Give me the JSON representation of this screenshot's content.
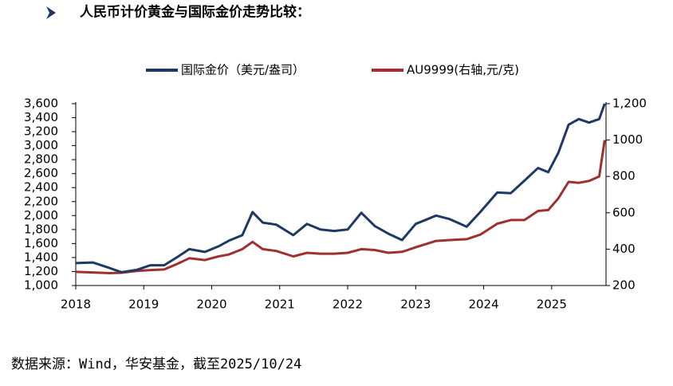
{
  "heading": "人民币计价黄金与国际金价走势比较：",
  "chart_data": {
    "type": "line",
    "x": [
      2018.0,
      2018.25,
      2018.5,
      2018.67,
      2018.9,
      2019.1,
      2019.3,
      2019.5,
      2019.67,
      2019.9,
      2020.1,
      2020.25,
      2020.45,
      2020.6,
      2020.75,
      2020.95,
      2021.2,
      2021.4,
      2021.6,
      2021.8,
      2022.0,
      2022.2,
      2022.4,
      2022.6,
      2022.8,
      2023.0,
      2023.3,
      2023.5,
      2023.75,
      2023.95,
      2024.2,
      2024.4,
      2024.6,
      2024.8,
      2024.95,
      2025.1,
      2025.25,
      2025.4,
      2025.55,
      2025.7,
      2025.78
    ],
    "series": [
      {
        "name": "国际金价（美元/盎司）",
        "color": "#1f3864",
        "values": [
          1320,
          1330,
          1250,
          1190,
          1225,
          1290,
          1290,
          1410,
          1520,
          1480,
          1560,
          1640,
          1720,
          2050,
          1900,
          1870,
          1720,
          1880,
          1800,
          1780,
          1800,
          2040,
          1850,
          1740,
          1650,
          1880,
          2000,
          1950,
          1840,
          2050,
          2330,
          2320,
          2500,
          2680,
          2620,
          2900,
          3300,
          3380,
          3330,
          3380,
          3600
        ]
      },
      {
        "name": "AU9999(右轴,元/克)",
        "color": "#a03030",
        "axis": "y2",
        "values": [
          275,
          272,
          268,
          270,
          280,
          285,
          288,
          320,
          350,
          340,
          360,
          370,
          400,
          440,
          400,
          390,
          360,
          380,
          375,
          375,
          380,
          400,
          395,
          380,
          385,
          410,
          445,
          450,
          455,
          480,
          540,
          560,
          560,
          610,
          615,
          680,
          770,
          765,
          775,
          800,
          1000
        ]
      }
    ],
    "xlim": [
      2018,
      2025.8
    ],
    "xticks": [
      2018,
      2019,
      2020,
      2021,
      2022,
      2023,
      2024,
      2025
    ],
    "ylim": [
      1000,
      3600
    ],
    "yticks": [
      {
        "value": 1000,
        "label": "1,000"
      },
      {
        "value": 1200,
        "label": "1,200"
      },
      {
        "value": 1400,
        "label": "1,400"
      },
      {
        "value": 1600,
        "label": "1,600"
      },
      {
        "value": 1800,
        "label": "1,800"
      },
      {
        "value": 2000,
        "label": "2,000"
      },
      {
        "value": 2200,
        "label": "2,200"
      },
      {
        "value": 2400,
        "label": "2,400"
      },
      {
        "value": 2600,
        "label": "2,600"
      },
      {
        "value": 2800,
        "label": "2,800"
      },
      {
        "value": 3000,
        "label": "3,000"
      },
      {
        "value": 3200,
        "label": "3,200"
      },
      {
        "value": 3400,
        "label": "3,400"
      },
      {
        "value": 3600,
        "label": "3,600"
      }
    ],
    "y2lim": [
      200,
      1200
    ],
    "y2ticks": [
      200,
      400,
      600,
      800,
      1000,
      {
        "value": 1200,
        "label": "1,200"
      }
    ],
    "grid": false,
    "legend": "top",
    "note": "数据来源：Wind，华安基金，截至2025/10/24"
  }
}
